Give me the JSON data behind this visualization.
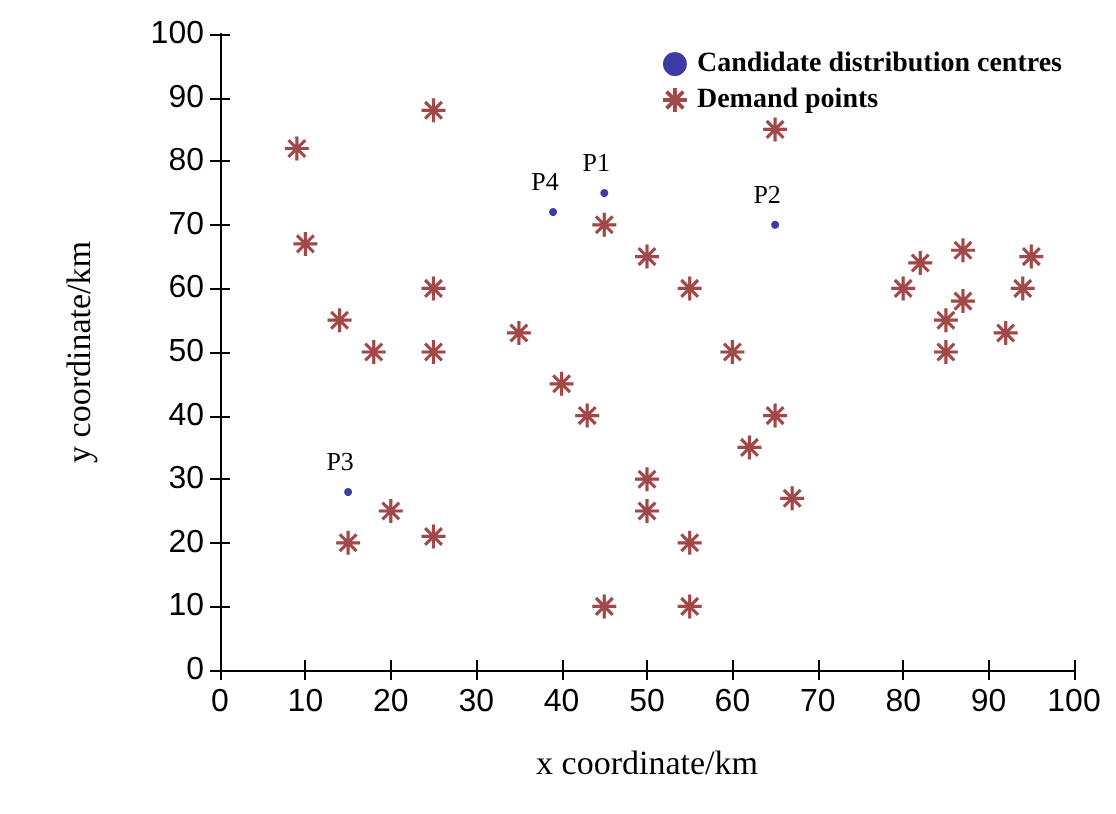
{
  "chart_data": {
    "type": "scatter",
    "xlabel": "x coordinate/km",
    "ylabel": "y coordinate/km",
    "xlim": [
      0,
      100
    ],
    "xticks": [
      0,
      10,
      20,
      30,
      40,
      50,
      60,
      70,
      80,
      90,
      100
    ],
    "ylim": [
      0,
      100
    ],
    "yticks": [
      0,
      10,
      20,
      30,
      40,
      50,
      60,
      70,
      80,
      90,
      100
    ],
    "grid": false,
    "legend": "top right",
    "series": [
      {
        "name": "Candidate distribution centres",
        "color": "#0a0a8c",
        "marker": "circle",
        "x": [
          45,
          65,
          15,
          39
        ],
        "values": [
          75,
          70,
          28,
          72
        ]
      },
      {
        "name": "Demand points",
        "color": "#8b1a1a",
        "marker": "cross",
        "x": [
          9,
          10,
          25,
          25,
          25,
          14,
          18,
          35,
          40,
          43,
          45,
          50,
          55,
          65,
          60,
          62,
          65,
          67,
          50,
          50,
          55,
          55,
          45,
          15,
          20,
          25,
          80,
          82,
          87,
          87,
          85,
          85,
          92,
          94,
          95
        ],
        "values": [
          82,
          67,
          88,
          60,
          50,
          55,
          50,
          53,
          45,
          40,
          70,
          65,
          60,
          85,
          50,
          35,
          40,
          27,
          30,
          25,
          20,
          10,
          10,
          20,
          25,
          21,
          60,
          64,
          66,
          58,
          55,
          50,
          53,
          60,
          65
        ]
      }
    ],
    "annotations": [
      {
        "text": "P1",
        "x": 45,
        "y": 75
      },
      {
        "text": "P2",
        "x": 65,
        "y": 70
      },
      {
        "text": "P3",
        "x": 15,
        "y": 28
      },
      {
        "text": "P4",
        "x": 39,
        "y": 72
      }
    ]
  }
}
